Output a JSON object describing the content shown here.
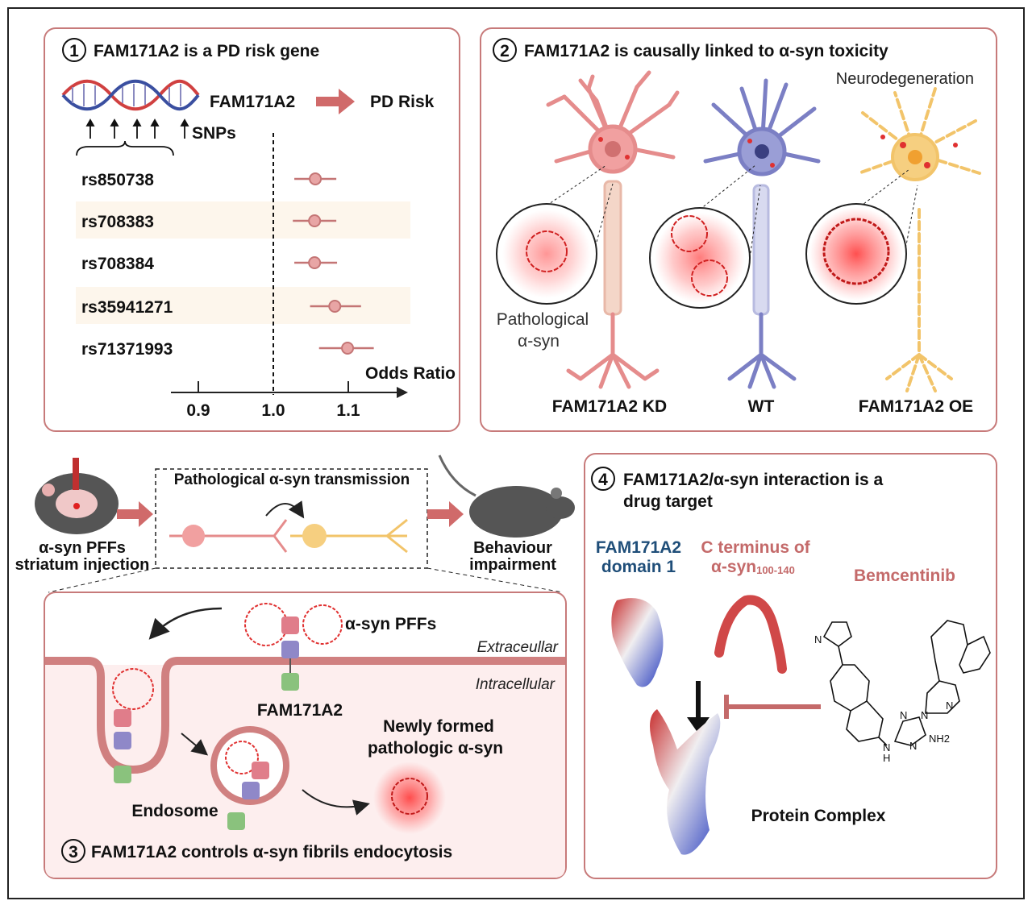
{
  "panel1": {
    "number": "1",
    "title": "FAM171A2 is a PD risk gene",
    "gene": "FAM171A2",
    "outcome": "PD Risk",
    "snps_label": "SNPs",
    "forest": {
      "type": "forest",
      "xlabel": "Odds Ratio",
      "x_ticks": [
        "0.9",
        "1.0",
        "1.1"
      ],
      "xlim": [
        0.87,
        1.17
      ],
      "reference_line": 1.0,
      "rows": [
        {
          "snp": "rs850738",
          "or": 1.056,
          "ci": [
            1.028,
            1.084
          ],
          "shaded": false
        },
        {
          "snp": "rs708383",
          "or": 1.055,
          "ci": [
            1.026,
            1.084
          ],
          "shaded": true
        },
        {
          "snp": "rs708384",
          "or": 1.055,
          "ci": [
            1.028,
            1.085
          ],
          "shaded": false
        },
        {
          "snp": "rs35941271",
          "or": 1.082,
          "ci": [
            1.049,
            1.117
          ],
          "shaded": true
        },
        {
          "snp": "rs71371993",
          "or": 1.099,
          "ci": [
            1.061,
            1.134
          ],
          "shaded": false
        }
      ]
    }
  },
  "panel2": {
    "number": "2",
    "title": "FAM171A2 is causally linked to α-syn toxicity",
    "neurodegeneration": "Neurodegeneration",
    "pathological_line1": "Pathological",
    "pathological_line2": "α-syn",
    "conditions": [
      "FAM171A2 KD",
      "WT",
      "FAM171A2 OE"
    ]
  },
  "flow": {
    "injection_line1": "α-syn PFFs",
    "injection_line2": "striatum injection",
    "transmission": "Pathological α-syn transmission",
    "behaviour_line1": "Behaviour",
    "behaviour_line2": "impairment"
  },
  "panel3": {
    "number": "3",
    "title": "FAM171A2 controls α-syn fibrils endocytosis",
    "pffs": "α-syn PFFs",
    "extracellular": "Extraceullar",
    "intracellular": "Intracellular",
    "receptor": "FAM171A2",
    "endosome": "Endosome",
    "newly_line1": "Newly formed",
    "newly_line2": "pathologic α-syn"
  },
  "panel4": {
    "number": "4",
    "title_line1": "FAM171A2/α-syn interaction is a",
    "title_line2": "drug target",
    "domain_line1": "FAM171A2",
    "domain_line2": "domain 1",
    "cterm_line1": "C terminus of",
    "cterm_line2": "α-syn",
    "cterm_sub": "100-140",
    "drug": "Bemcentinib",
    "complex": "Protein Complex",
    "atoms": {
      "n1": "N",
      "n2": "N",
      "n3": "N",
      "n4": "N",
      "n5": "N",
      "nh": "N",
      "h": "H",
      "nh2": "NH2"
    }
  },
  "colors": {
    "panel_border": "#c77a7a",
    "accent_red": "#d95a5a",
    "rose": "#c46a6a",
    "domain_blue": "#1f4e79",
    "row_shade": "#fdf6ec",
    "neuron_kd": "#e58c8c",
    "neuron_wt": "#7b7fc4",
    "neuron_oe": "#f2c46a"
  }
}
